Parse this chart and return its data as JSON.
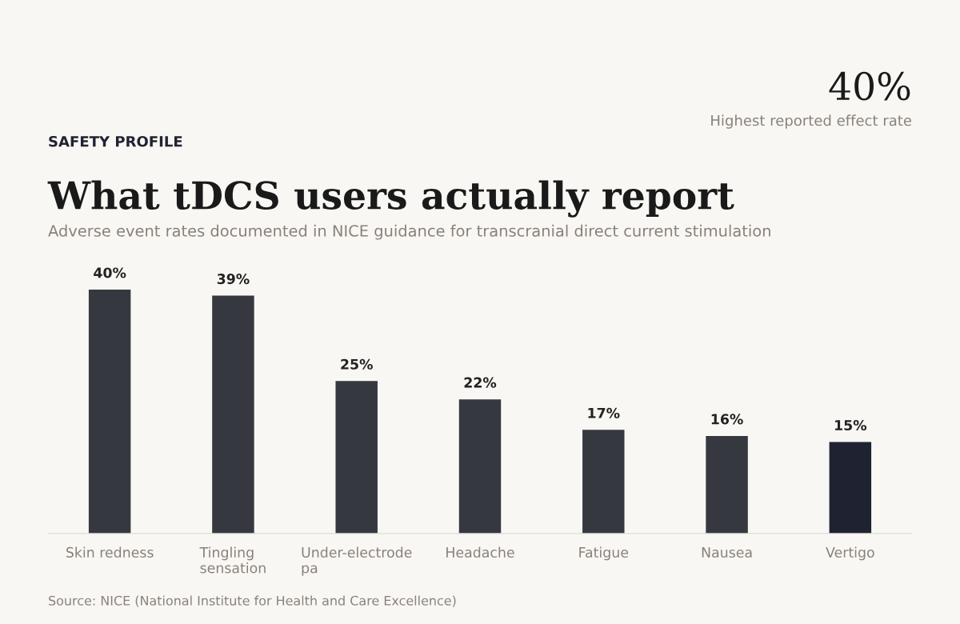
{
  "chart_data": {
    "type": "bar",
    "title": "What tDCS users actually report",
    "subtitle": "Adverse event rates documented in NICE guidance for transcranial direct current stimulation",
    "annotations": [
      "SAFETY PROFILE",
      "40%",
      "Highest reported effect rate",
      "Source: NICE (National Institute for Health and Care Excellence)"
    ],
    "categories": [
      "Skin redness",
      "Tingling sensation",
      "Under-electrode pa",
      "Headache",
      "Fatigue",
      "Nausea",
      "Vertigo"
    ],
    "values": [
      40,
      39,
      25,
      22,
      17,
      16,
      15
    ],
    "colors": [
      "#363840",
      "#363840",
      "#363840",
      "#363840",
      "#363840",
      "#363840",
      "#1f2230"
    ],
    "value_labels": [
      "40%",
      "39%",
      "25%",
      "22%",
      "17%",
      "16%",
      "15%"
    ],
    "grid": false,
    "legend": false
  }
}
